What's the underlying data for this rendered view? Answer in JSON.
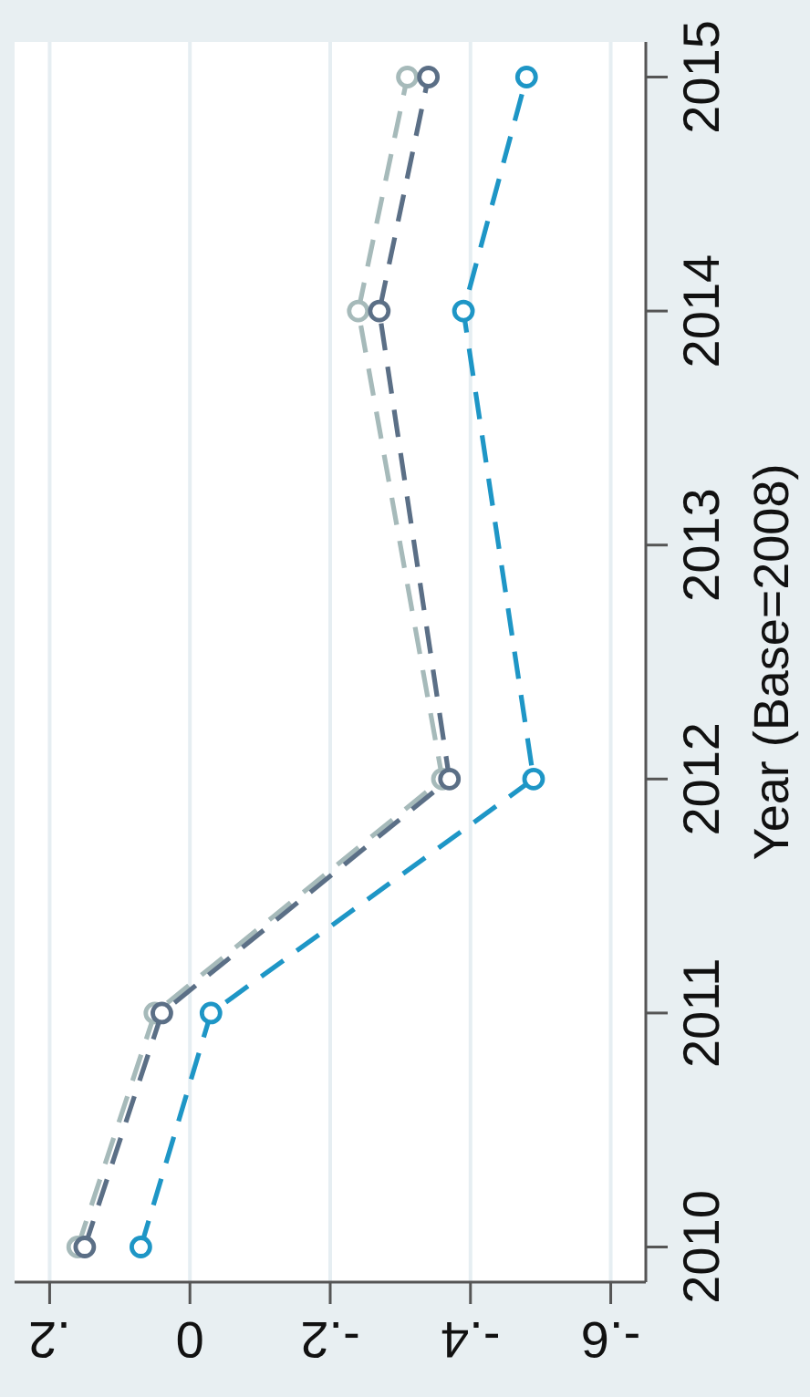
{
  "chart_data": {
    "type": "line",
    "ylabel": "Year (Base=2008)",
    "ylim": [
      2009.85,
      2015.15
    ],
    "yticks": [
      2010,
      2011,
      2012,
      2013,
      2014,
      2015
    ],
    "xlim": [
      0.25,
      -0.65
    ],
    "xticks": [
      {
        "value": 0.2,
        "label": ".2"
      },
      0,
      {
        "value": -0.2,
        "label": "-.2"
      },
      {
        "value": -0.4,
        "label": "-.4"
      },
      {
        "value": -0.6,
        "label": "-.6"
      }
    ],
    "grid": "x",
    "marker": "circle",
    "line_style": "dashed",
    "series": [
      {
        "color": "#a6baba",
        "x": [
          0.16,
          0.05,
          -0.36,
          -0.24,
          -0.31
        ],
        "values": [
          2010,
          2011,
          2012,
          2014,
          2015
        ]
      },
      {
        "color": "#5b6f86",
        "x": [
          0.15,
          0.04,
          -0.37,
          -0.27,
          -0.34
        ],
        "values": [
          2010,
          2011,
          2012,
          2014,
          2015
        ]
      },
      {
        "color": "#1e96c6",
        "x": [
          0.07,
          -0.03,
          -0.49,
          -0.39,
          -0.48
        ],
        "values": [
          2010,
          2011,
          2012,
          2014,
          2015
        ]
      }
    ]
  }
}
